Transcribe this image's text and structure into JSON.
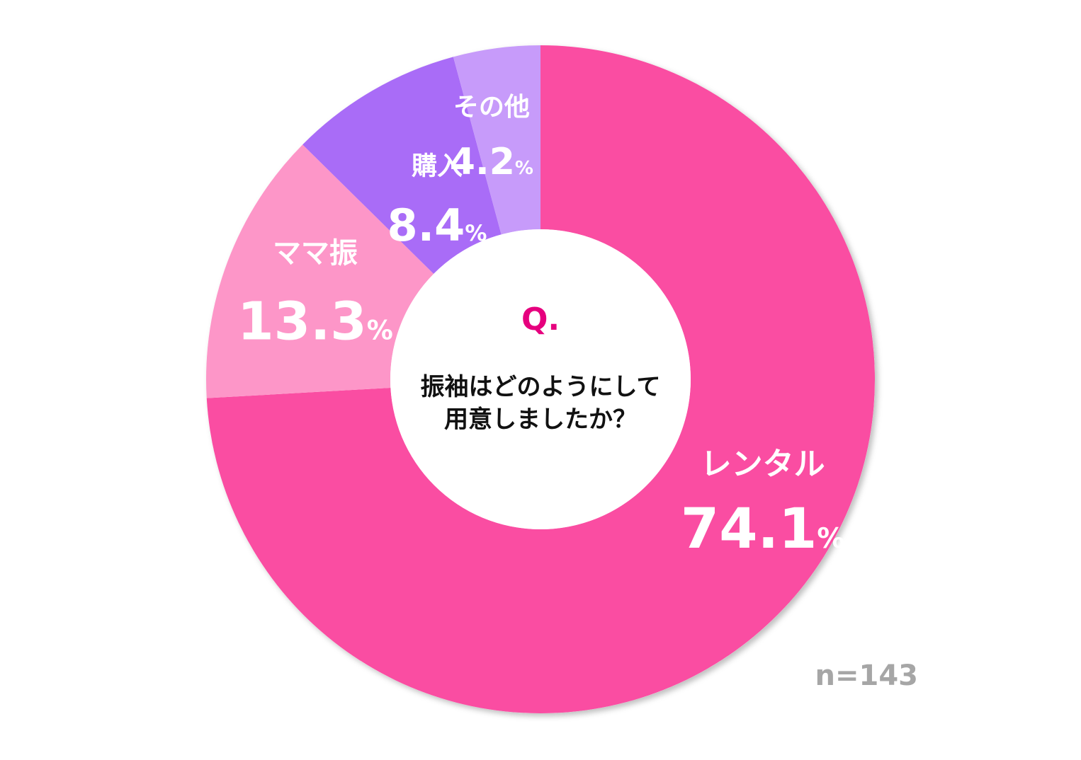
{
  "chart_data": {
    "type": "pie",
    "variant": "donut",
    "start_angle_deg": 0,
    "direction": "clockwise",
    "unit": "%",
    "slices": [
      {
        "label": "レンタル",
        "value": 74.1,
        "display": "74.1",
        "color": "#fa4ea2"
      },
      {
        "label": "ママ振",
        "value": 13.3,
        "display": "13.3",
        "color": "#fd96c8"
      },
      {
        "label": "購入",
        "value": 8.4,
        "display": "8.4",
        "color": "#a96cf7"
      },
      {
        "label": "その他",
        "value": 4.2,
        "display": "4.2",
        "color": "#c79bfa"
      }
    ],
    "center": {
      "question_mark": "Q.",
      "lines": [
        "振袖はどのようにして",
        "用意しましたか？"
      ]
    },
    "sample_size": "n=143"
  }
}
